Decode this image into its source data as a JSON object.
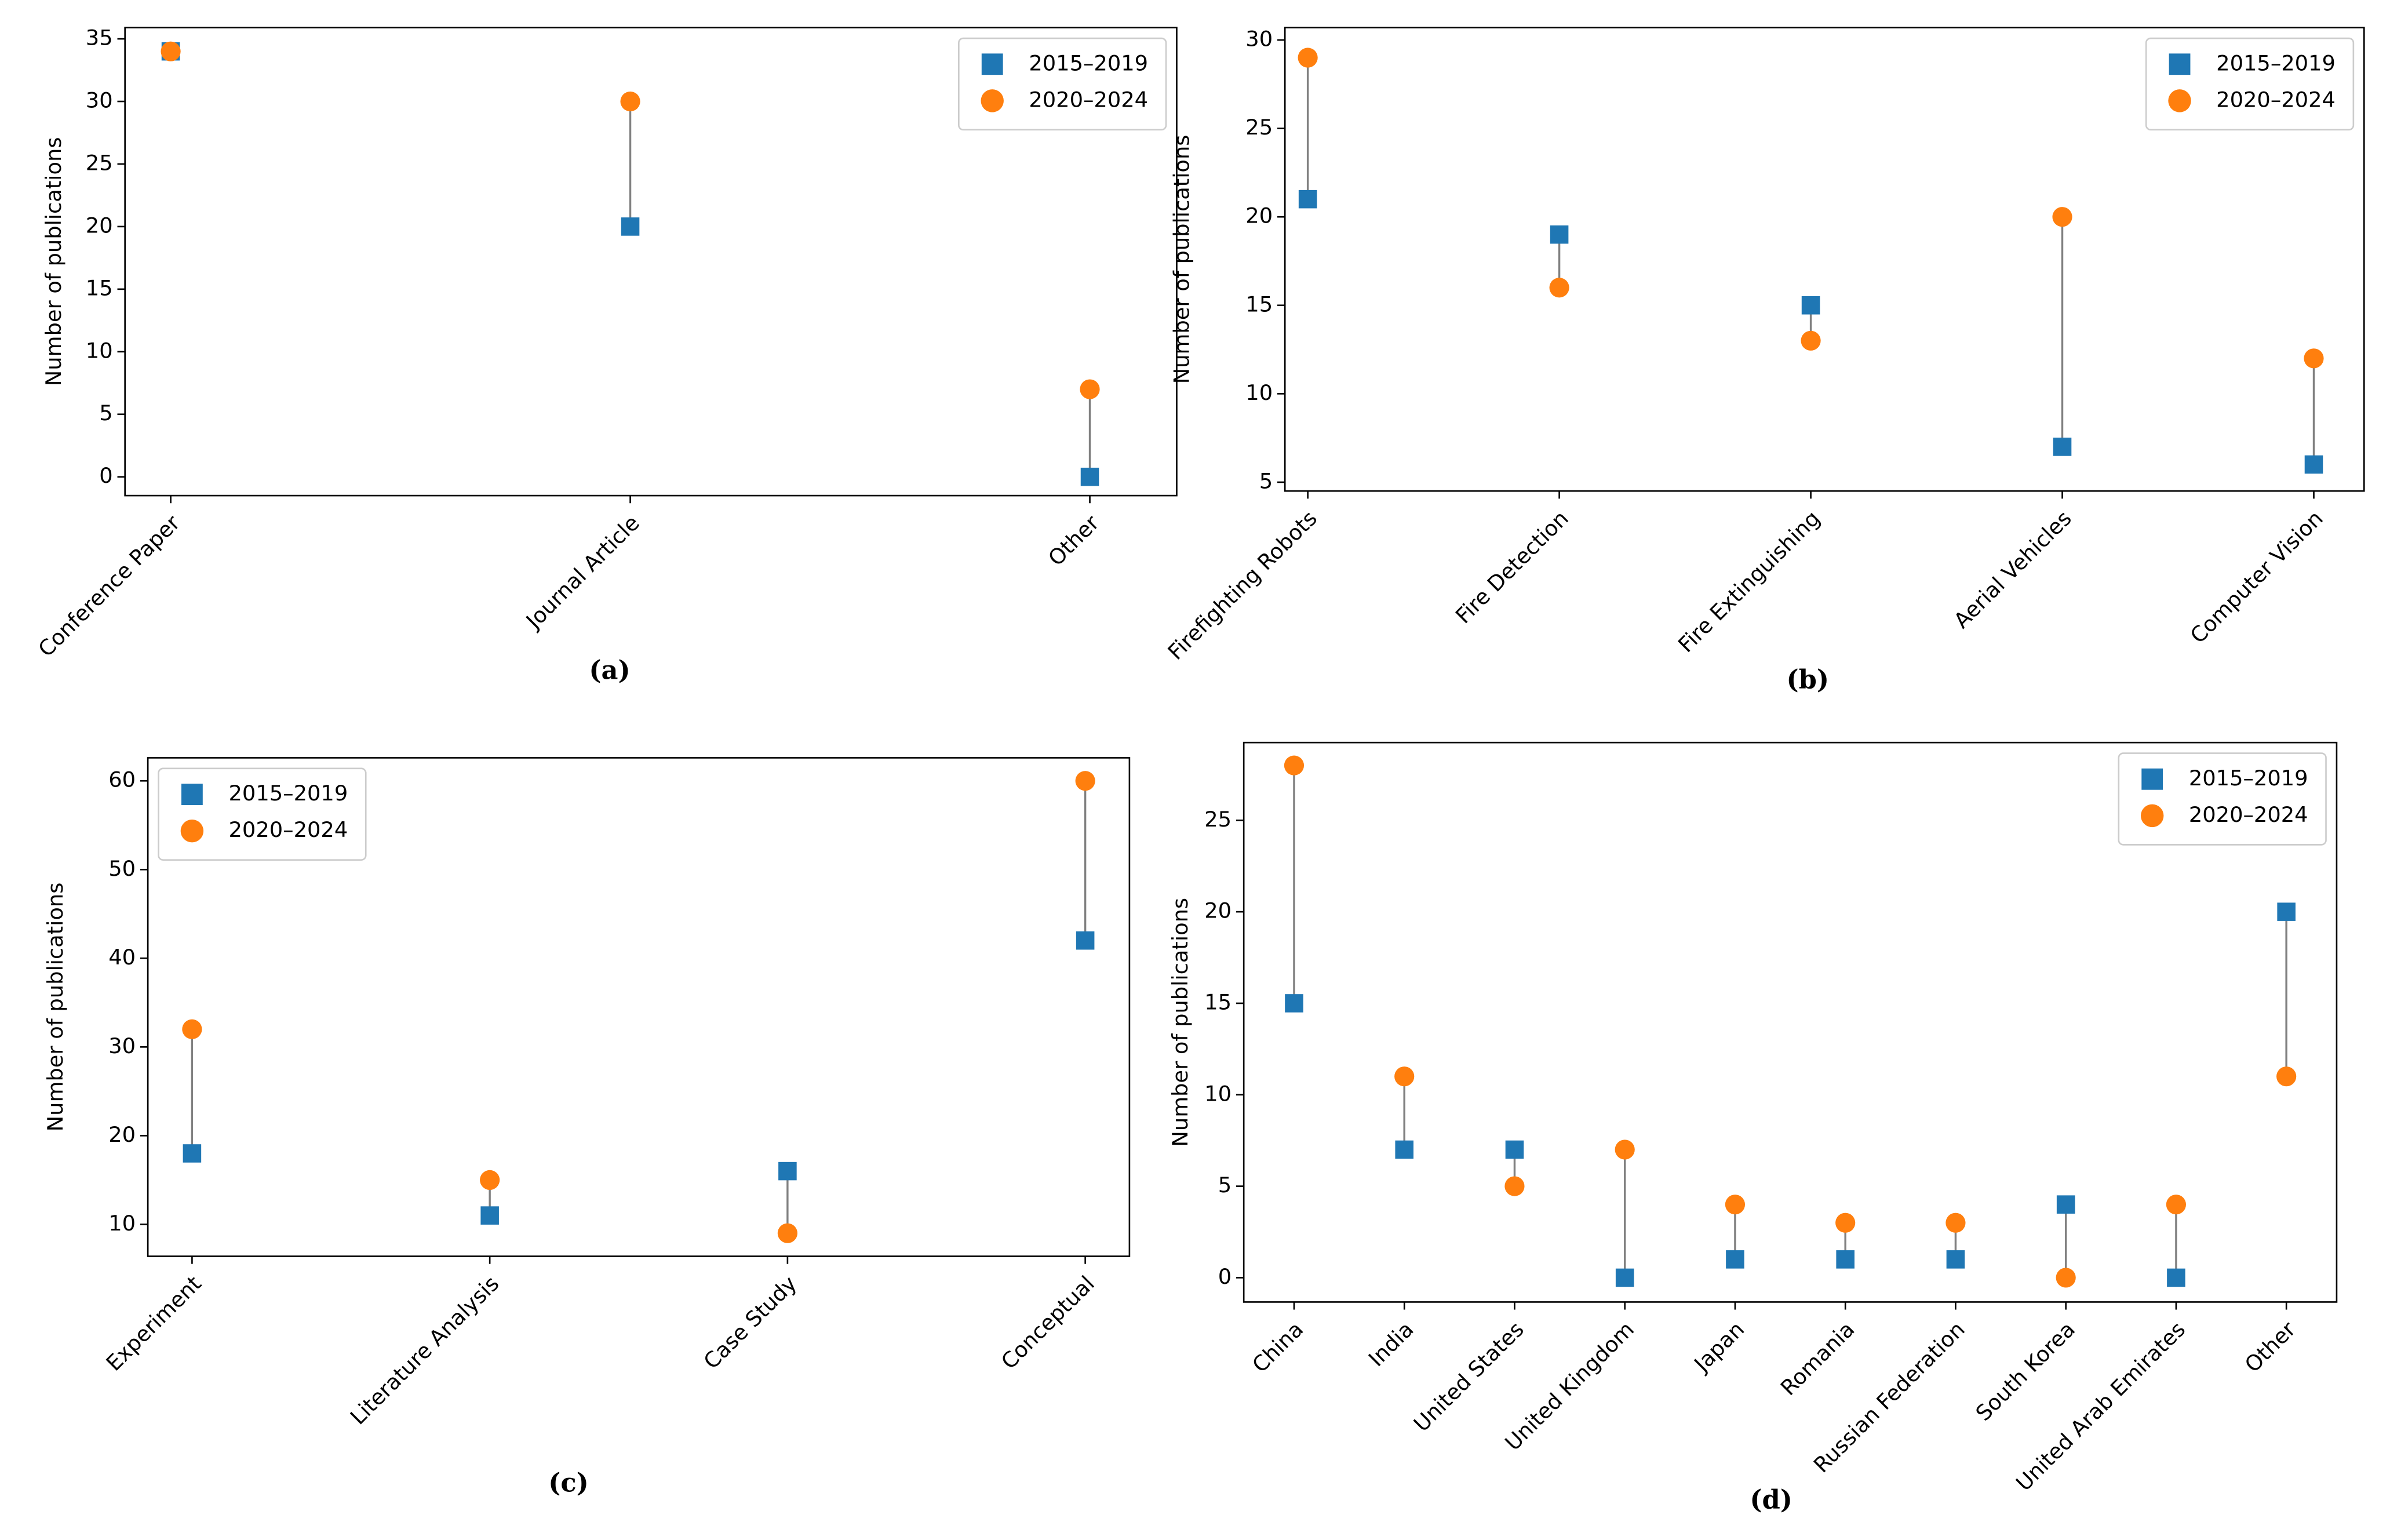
{
  "chart_data": [
    {
      "type": "dumbbell",
      "caption": "(a)",
      "y_label": "Number of publications",
      "categories": [
        "Conference Paper",
        "Journal Article",
        "Other"
      ],
      "series": [
        {
          "name": "2015–2019",
          "color": "#1f77b4",
          "marker": "square",
          "values": [
            34,
            20,
            0
          ]
        },
        {
          "name": "2020–2024",
          "color": "#ff7f0e",
          "marker": "circle",
          "values": [
            34,
            30,
            7
          ]
        }
      ],
      "ylim": [
        -1.5,
        35.9
      ],
      "yticks": [
        0,
        5,
        10,
        15,
        20,
        25,
        30,
        35
      ],
      "legend": "upper right",
      "grid": false
    },
    {
      "type": "dumbbell",
      "caption": "(b)",
      "y_label": "Number of publications",
      "categories": [
        "Firefighting Robots",
        "Fire Detection",
        "Fire Extinguishing",
        "Aerial Vehicles",
        "Computer Vision"
      ],
      "series": [
        {
          "name": "2015–2019",
          "color": "#1f77b4",
          "marker": "square",
          "values": [
            21,
            19,
            15,
            7,
            6
          ]
        },
        {
          "name": "2020–2024",
          "color": "#ff7f0e",
          "marker": "circle",
          "values": [
            29,
            16,
            13,
            20,
            12
          ]
        }
      ],
      "ylim": [
        4.5,
        30.7
      ],
      "yticks": [
        5,
        10,
        15,
        20,
        25,
        30
      ],
      "legend": "upper right",
      "grid": false
    },
    {
      "type": "dumbbell",
      "caption": "(c)",
      "y_label": "Number of publications",
      "categories": [
        "Experiment",
        "Literature Analysis",
        "Case Study",
        "Conceptual"
      ],
      "series": [
        {
          "name": "2015–2019",
          "color": "#1f77b4",
          "marker": "square",
          "values": [
            18,
            11,
            16,
            42
          ]
        },
        {
          "name": "2020–2024",
          "color": "#ff7f0e",
          "marker": "circle",
          "values": [
            32,
            15,
            9,
            60
          ]
        }
      ],
      "ylim": [
        6.4,
        62.6
      ],
      "yticks": [
        10,
        20,
        30,
        40,
        50,
        60
      ],
      "legend": "upper left",
      "grid": false
    },
    {
      "type": "dumbbell",
      "caption": "(d)",
      "y_label": "Number of publications",
      "categories": [
        "China",
        "India",
        "United States",
        "United Kingdom",
        "Japan",
        "Romania",
        "Russian Federation",
        "South Korea",
        "United Arab Emirates",
        "Other"
      ],
      "series": [
        {
          "name": "2015–2019",
          "color": "#1f77b4",
          "marker": "square",
          "values": [
            15,
            7,
            7,
            0,
            1,
            1,
            1,
            4,
            0,
            20
          ]
        },
        {
          "name": "2020–2024",
          "color": "#ff7f0e",
          "marker": "circle",
          "values": [
            28,
            11,
            5,
            7,
            4,
            3,
            3,
            0,
            4,
            11
          ]
        }
      ],
      "ylim": [
        -1.33,
        29.25
      ],
      "yticks": [
        0,
        5,
        10,
        15,
        20,
        25
      ],
      "legend": "upper right",
      "grid": false
    }
  ]
}
